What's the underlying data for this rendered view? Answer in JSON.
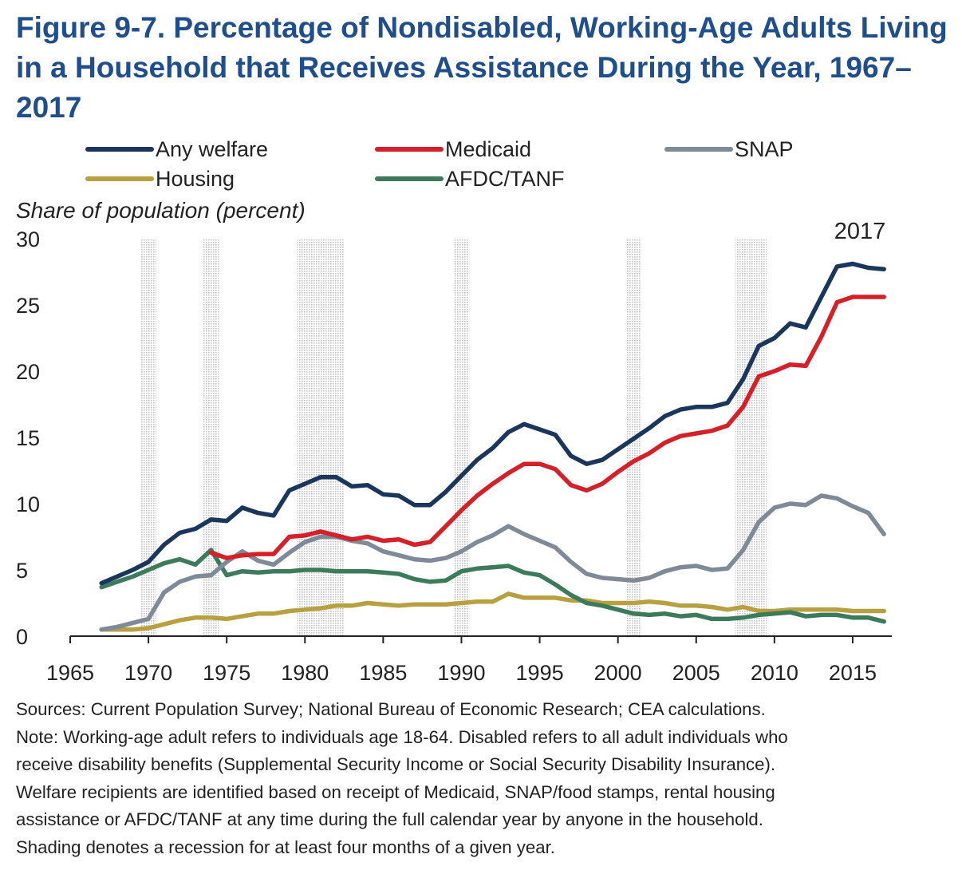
{
  "title": "Figure 9-7. Percentage of Nondisabled, Working-Age Adults Living in a Household that Receives Assistance During the Year, 1967–2017",
  "y_axis_label": "Share of population (percent)",
  "annotation": "2017",
  "footnotes": [
    "Sources: Current Population Survey; National Bureau of Economic Research; CEA calculations.",
    "Note: Working-age adult refers to individuals age 18-64. Disabled refers to all adult individuals who",
    "receive disability benefits (Supplemental Security Income or Social Security Disability Insurance).",
    "Welfare recipients are identified based on receipt of Medicaid, SNAP/food stamps, rental housing",
    "assistance or AFDC/TANF at any time during the full calendar year by anyone in the household.",
    "Shading denotes a recession for at least four months of a given year."
  ],
  "chart_data": {
    "type": "line",
    "title": "Figure 9-7. Percentage of Nondisabled, Working-Age Adults Living in a Household that Receives Assistance During the Year, 1967–2017",
    "xlabel": "",
    "ylabel": "Share of population (percent)",
    "xlim": [
      1965,
      2017.5
    ],
    "ylim": [
      0,
      30
    ],
    "xticks": [
      1965,
      1970,
      1975,
      1980,
      1985,
      1990,
      1995,
      2000,
      2005,
      2010,
      2015
    ],
    "yticks": [
      0,
      5,
      10,
      15,
      20,
      25,
      30
    ],
    "grid": false,
    "legend_position": "top",
    "recession_shading_years": [
      [
        1969.5,
        1970.5
      ],
      [
        1973.5,
        1974.5
      ],
      [
        1979.5,
        1982.5
      ],
      [
        1989.5,
        1990.5
      ],
      [
        2000.5,
        2001.5
      ],
      [
        2007.5,
        2009.5
      ]
    ],
    "x": [
      1967,
      1968,
      1969,
      1970,
      1971,
      1972,
      1973,
      1974,
      1975,
      1976,
      1977,
      1978,
      1979,
      1980,
      1981,
      1982,
      1983,
      1984,
      1985,
      1986,
      1987,
      1988,
      1989,
      1990,
      1991,
      1992,
      1993,
      1994,
      1995,
      1996,
      1997,
      1998,
      1999,
      2000,
      2001,
      2002,
      2003,
      2004,
      2005,
      2006,
      2007,
      2008,
      2009,
      2010,
      2011,
      2012,
      2013,
      2014,
      2015,
      2016,
      2017
    ],
    "series": [
      {
        "name": "Any welfare",
        "color": "#1b365d",
        "values": [
          4.0,
          4.5,
          5.0,
          5.6,
          6.9,
          7.8,
          8.1,
          8.8,
          8.7,
          9.7,
          9.3,
          9.1,
          11.0,
          11.5,
          12.0,
          12.0,
          11.3,
          11.4,
          10.7,
          10.6,
          9.9,
          9.9,
          10.9,
          12.1,
          13.3,
          14.2,
          15.4,
          16.0,
          15.6,
          15.2,
          13.6,
          13.0,
          13.3,
          14.1,
          14.9,
          15.7,
          16.6,
          17.1,
          17.3,
          17.3,
          17.6,
          19.4,
          21.9,
          22.5,
          23.6,
          23.3,
          25.6,
          27.9,
          28.1,
          27.8,
          27.7
        ]
      },
      {
        "name": "Medicaid",
        "color": "#d62027",
        "values": [
          null,
          null,
          null,
          null,
          null,
          null,
          null,
          6.3,
          5.9,
          6.1,
          6.2,
          6.2,
          7.5,
          7.6,
          7.9,
          7.6,
          7.3,
          7.5,
          7.2,
          7.3,
          6.9,
          7.1,
          8.3,
          9.5,
          10.6,
          11.5,
          12.3,
          13.0,
          13.0,
          12.6,
          11.4,
          11.0,
          11.5,
          12.4,
          13.2,
          13.8,
          14.6,
          15.1,
          15.3,
          15.5,
          15.9,
          17.3,
          19.6,
          20.0,
          20.5,
          20.4,
          22.6,
          25.2,
          25.6,
          25.6,
          25.6
        ]
      },
      {
        "name": "SNAP",
        "color": "#7f8a99",
        "values": [
          0.5,
          0.7,
          1.0,
          1.3,
          3.3,
          4.1,
          4.5,
          4.6,
          5.6,
          6.4,
          5.7,
          5.4,
          6.3,
          7.1,
          7.5,
          7.5,
          7.2,
          7.0,
          6.4,
          6.1,
          5.8,
          5.7,
          5.9,
          6.4,
          7.1,
          7.6,
          8.3,
          7.7,
          7.2,
          6.7,
          5.6,
          4.7,
          4.4,
          4.3,
          4.2,
          4.4,
          4.9,
          5.2,
          5.3,
          5.0,
          5.1,
          6.5,
          8.6,
          9.7,
          10.0,
          9.9,
          10.6,
          10.4,
          9.8,
          9.3,
          7.7
        ]
      },
      {
        "name": "Housing",
        "color": "#b8a040",
        "values": [
          0.5,
          0.5,
          0.5,
          0.6,
          0.9,
          1.2,
          1.4,
          1.4,
          1.3,
          1.5,
          1.7,
          1.7,
          1.9,
          2.0,
          2.1,
          2.3,
          2.3,
          2.5,
          2.4,
          2.3,
          2.4,
          2.4,
          2.4,
          2.5,
          2.6,
          2.6,
          3.2,
          2.9,
          2.9,
          2.9,
          2.7,
          2.7,
          2.5,
          2.5,
          2.5,
          2.6,
          2.5,
          2.3,
          2.3,
          2.2,
          2.0,
          2.2,
          1.9,
          1.9,
          2.0,
          2.0,
          2.0,
          2.0,
          1.9,
          1.9,
          1.9
        ]
      },
      {
        "name": "AFDC/TANF",
        "color": "#3c7a5c",
        "values": [
          3.7,
          4.1,
          4.5,
          5.0,
          5.5,
          5.8,
          5.4,
          6.5,
          4.6,
          4.9,
          4.8,
          4.9,
          4.9,
          5.0,
          5.0,
          4.9,
          4.9,
          4.9,
          4.8,
          4.7,
          4.3,
          4.1,
          4.2,
          4.9,
          5.1,
          5.2,
          5.3,
          4.8,
          4.6,
          3.9,
          3.1,
          2.5,
          2.3,
          2.0,
          1.7,
          1.6,
          1.7,
          1.5,
          1.6,
          1.3,
          1.3,
          1.4,
          1.6,
          1.7,
          1.8,
          1.5,
          1.6,
          1.6,
          1.4,
          1.4,
          1.1
        ]
      }
    ]
  }
}
